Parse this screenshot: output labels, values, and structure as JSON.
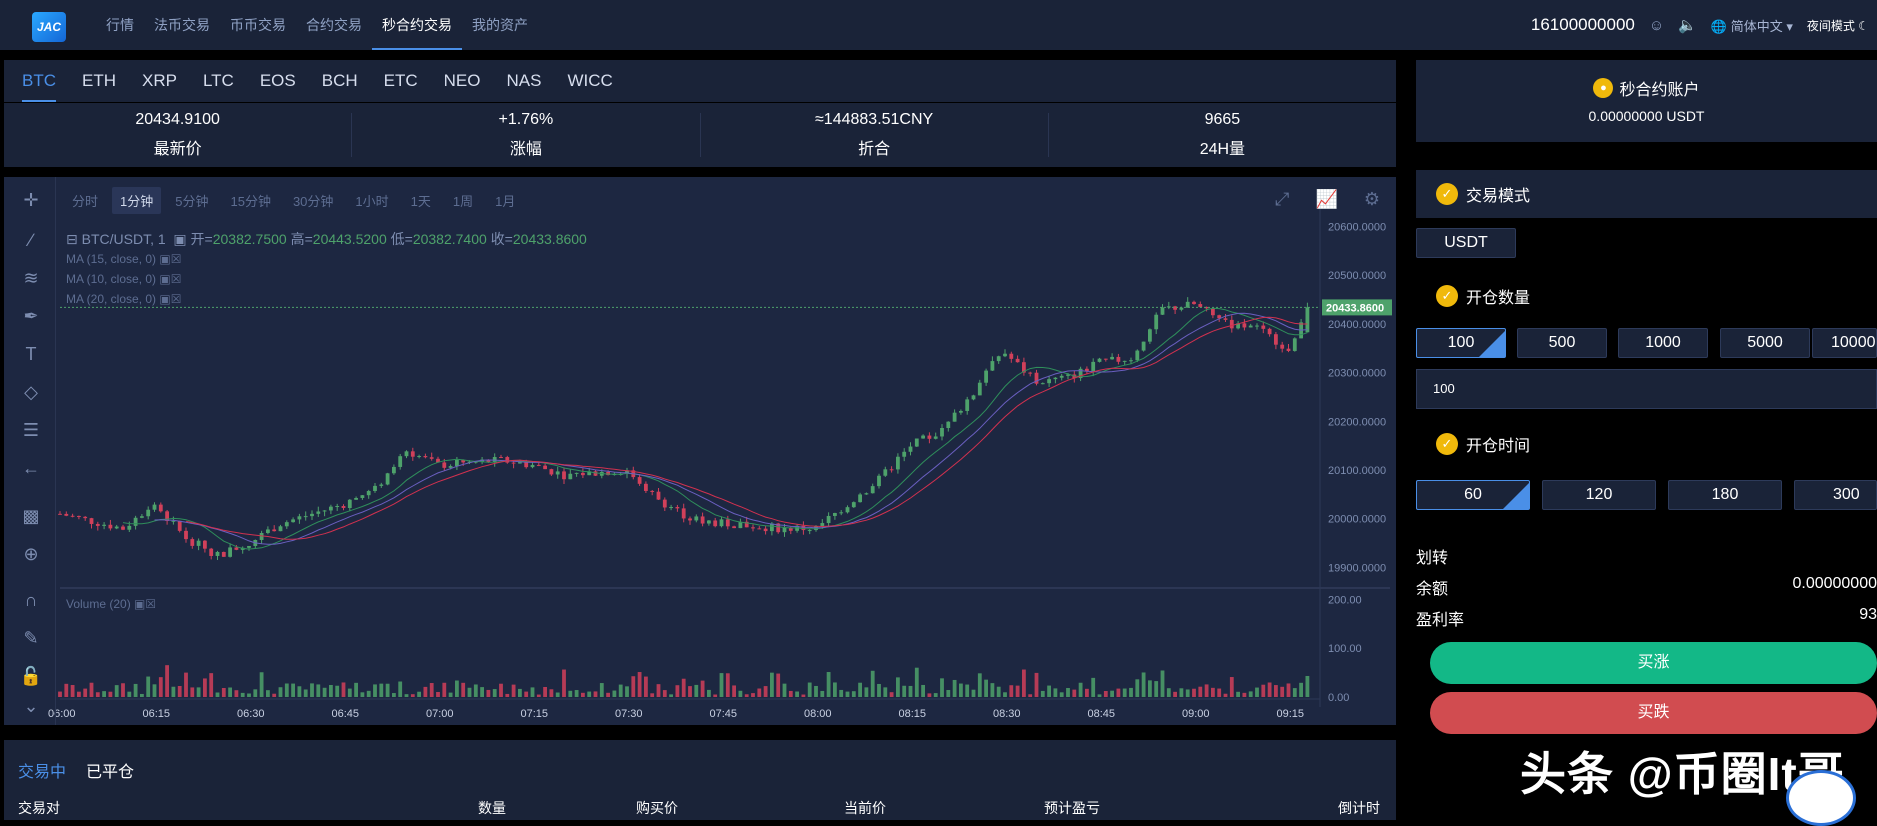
{
  "header": {
    "logo": "JAC",
    "nav": [
      "行情",
      "法币交易",
      "币币交易",
      "合约交易",
      "秒合约交易",
      "我的资产"
    ],
    "active_nav": 4,
    "phone": "16100000000",
    "language": "简体中文",
    "night_mode": "夜间模式"
  },
  "coins": [
    "BTC",
    "ETH",
    "XRP",
    "LTC",
    "EOS",
    "BCH",
    "ETC",
    "NEO",
    "NAS",
    "WICC"
  ],
  "stats": [
    {
      "value": "20434.9100",
      "label": "最新价"
    },
    {
      "value": "+1.76%",
      "label": "涨幅"
    },
    {
      "value": "≈144883.51CNY",
      "label": "折合"
    },
    {
      "value": "9665",
      "label": "24H量"
    }
  ],
  "chart": {
    "intervals": [
      "分时",
      "1分钟",
      "5分钟",
      "15分钟",
      "30分钟",
      "1小时",
      "1天",
      "1周",
      "1月"
    ],
    "active_interval": 1,
    "symbol": "BTC/USDT, 1",
    "open_label": "开=",
    "open": "20382.7500",
    "high_label": "高=",
    "high": "20443.5200",
    "low_label": "低=",
    "low": "20382.7400",
    "close_label": "收=",
    "close": "20433.8600",
    "ma": [
      "MA (15, close, 0)",
      "MA (10, close, 0)",
      "MA (20, close, 0)"
    ],
    "volume_label": "Volume (20)",
    "current_price": "20433.8600",
    "price_ticks": [
      "20600.0000",
      "20500.0000",
      "20400.0000",
      "20300.0000",
      "20200.0000",
      "20100.0000",
      "20000.0000",
      "19900.0000"
    ],
    "volume_ticks": [
      "200.00",
      "100.00",
      "0.00"
    ],
    "time_ticks": [
      "06:00",
      "06:15",
      "06:30",
      "06:45",
      "07:00",
      "07:15",
      "07:30",
      "07:45",
      "08:00",
      "08:15",
      "08:30",
      "08:45",
      "09:00",
      "09:15"
    ],
    "colors": {
      "up": "#4ea26b",
      "down": "#d1405a",
      "bg": "#1d2741"
    }
  },
  "chart_data": {
    "type": "candlestick",
    "symbol": "BTC/USDT",
    "interval": "1分钟",
    "x_range": [
      "06:00",
      "09:20"
    ],
    "ylim": [
      19870,
      20640
    ],
    "approx_close_path": [
      {
        "t": "06:00",
        "v": 20010
      },
      {
        "t": "06:10",
        "v": 19980
      },
      {
        "t": "06:15",
        "v": 20030
      },
      {
        "t": "06:20",
        "v": 19960
      },
      {
        "t": "06:25",
        "v": 19925
      },
      {
        "t": "06:30",
        "v": 19950
      },
      {
        "t": "06:35",
        "v": 19990
      },
      {
        "t": "06:40",
        "v": 20010
      },
      {
        "t": "06:45",
        "v": 20030
      },
      {
        "t": "06:50",
        "v": 20060
      },
      {
        "t": "06:55",
        "v": 20140
      },
      {
        "t": "07:00",
        "v": 20110
      },
      {
        "t": "07:10",
        "v": 20120
      },
      {
        "t": "07:15",
        "v": 20110
      },
      {
        "t": "07:20",
        "v": 20090
      },
      {
        "t": "07:30",
        "v": 20100
      },
      {
        "t": "07:35",
        "v": 20040
      },
      {
        "t": "07:40",
        "v": 20000
      },
      {
        "t": "07:45",
        "v": 19990
      },
      {
        "t": "07:55",
        "v": 19980
      },
      {
        "t": "08:00",
        "v": 19980
      },
      {
        "t": "08:05",
        "v": 20030
      },
      {
        "t": "08:10",
        "v": 20080
      },
      {
        "t": "08:15",
        "v": 20150
      },
      {
        "t": "08:20",
        "v": 20180
      },
      {
        "t": "08:25",
        "v": 20260
      },
      {
        "t": "08:28",
        "v": 20330
      },
      {
        "t": "08:30",
        "v": 20340
      },
      {
        "t": "08:35",
        "v": 20280
      },
      {
        "t": "08:40",
        "v": 20290
      },
      {
        "t": "08:45",
        "v": 20320
      },
      {
        "t": "08:50",
        "v": 20330
      },
      {
        "t": "08:55",
        "v": 20430
      },
      {
        "t": "09:00",
        "v": 20440
      },
      {
        "t": "09:05",
        "v": 20400
      },
      {
        "t": "09:10",
        "v": 20390
      },
      {
        "t": "09:15",
        "v": 20350
      },
      {
        "t": "09:18",
        "v": 20434
      }
    ],
    "last": {
      "open": 20382.75,
      "high": 20443.52,
      "low": 20382.74,
      "close": 20433.86
    }
  },
  "bottom": {
    "tabs": [
      "交易中",
      "已平仓"
    ],
    "active_tab": 0,
    "headers": [
      "交易对",
      "数量",
      "购买价",
      "当前价",
      "预计盈亏",
      "倒计时"
    ]
  },
  "right": {
    "account_title": "秒合约账户",
    "account_balance": "0.00000000 USDT",
    "mode_title": "交易模式",
    "mode_value": "USDT",
    "qty_title": "开仓数量",
    "qty_options": [
      "100",
      "500",
      "1000",
      "5000",
      "10000"
    ],
    "qty_input": "100",
    "time_title": "开仓时间",
    "time_options": [
      "60",
      "120",
      "180",
      "300"
    ],
    "transfer": "划转",
    "balance_label": "余额",
    "balance_value": "0.00000000",
    "profit_label": "盈利率",
    "profit_value": "93",
    "buy_up": "买涨",
    "buy_down": "买跌",
    "buy_up_color": "#13b887",
    "buy_down_color": "#d14c50"
  },
  "watermark": "头条 @币圈It哥"
}
